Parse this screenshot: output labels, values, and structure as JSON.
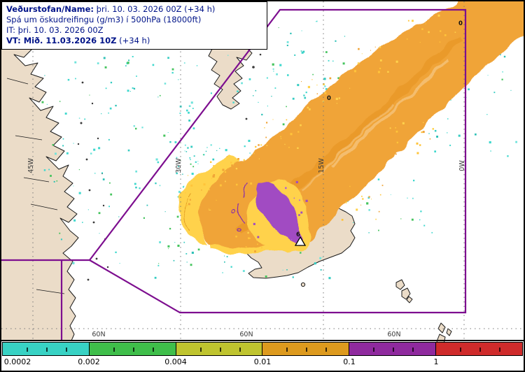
{
  "header": {
    "line1_bold": "Veðurstofan/Name:",
    "line1_rest": " þri. 10. 03. 2026 00Z (+34 h)",
    "line2": "Spá um öskudreifingu (g/m3) í 500hPa (18000ft)",
    "line3": "IT: þri. 10. 03. 2026 00Z",
    "line4_bold": "VT: Mið. 11.03.2026 10Z",
    "line4_rest": " (+34 h)"
  },
  "map": {
    "meridians": [
      "45W",
      "30W",
      "15W",
      "0W"
    ],
    "parallels": [
      "60N",
      "60N",
      "60N"
    ],
    "contour_labels": [
      "0",
      "0",
      "6"
    ],
    "colors": {
      "land": "#EBDCC8",
      "ocean": "#FFFFFF",
      "coast": "#1A1A1A",
      "grid": "#777777",
      "fir_boundary": "#7D0E8F",
      "ash_trace": "#3FD8CE",
      "ash_low": "#FFD24B",
      "ash_mid": "#F0A437",
      "ash_high": "#A14CC2",
      "header_text": "#001489"
    }
  },
  "legend": {
    "labels": [
      "0.0002",
      "0.002",
      "0.004",
      "0.01",
      "0.1",
      "1"
    ],
    "colors": [
      "#38D2C4",
      "#3FBE4A",
      "#BFC42F",
      "#DD9A1E",
      "#8F2A9E",
      "#CF2B2B"
    ]
  }
}
